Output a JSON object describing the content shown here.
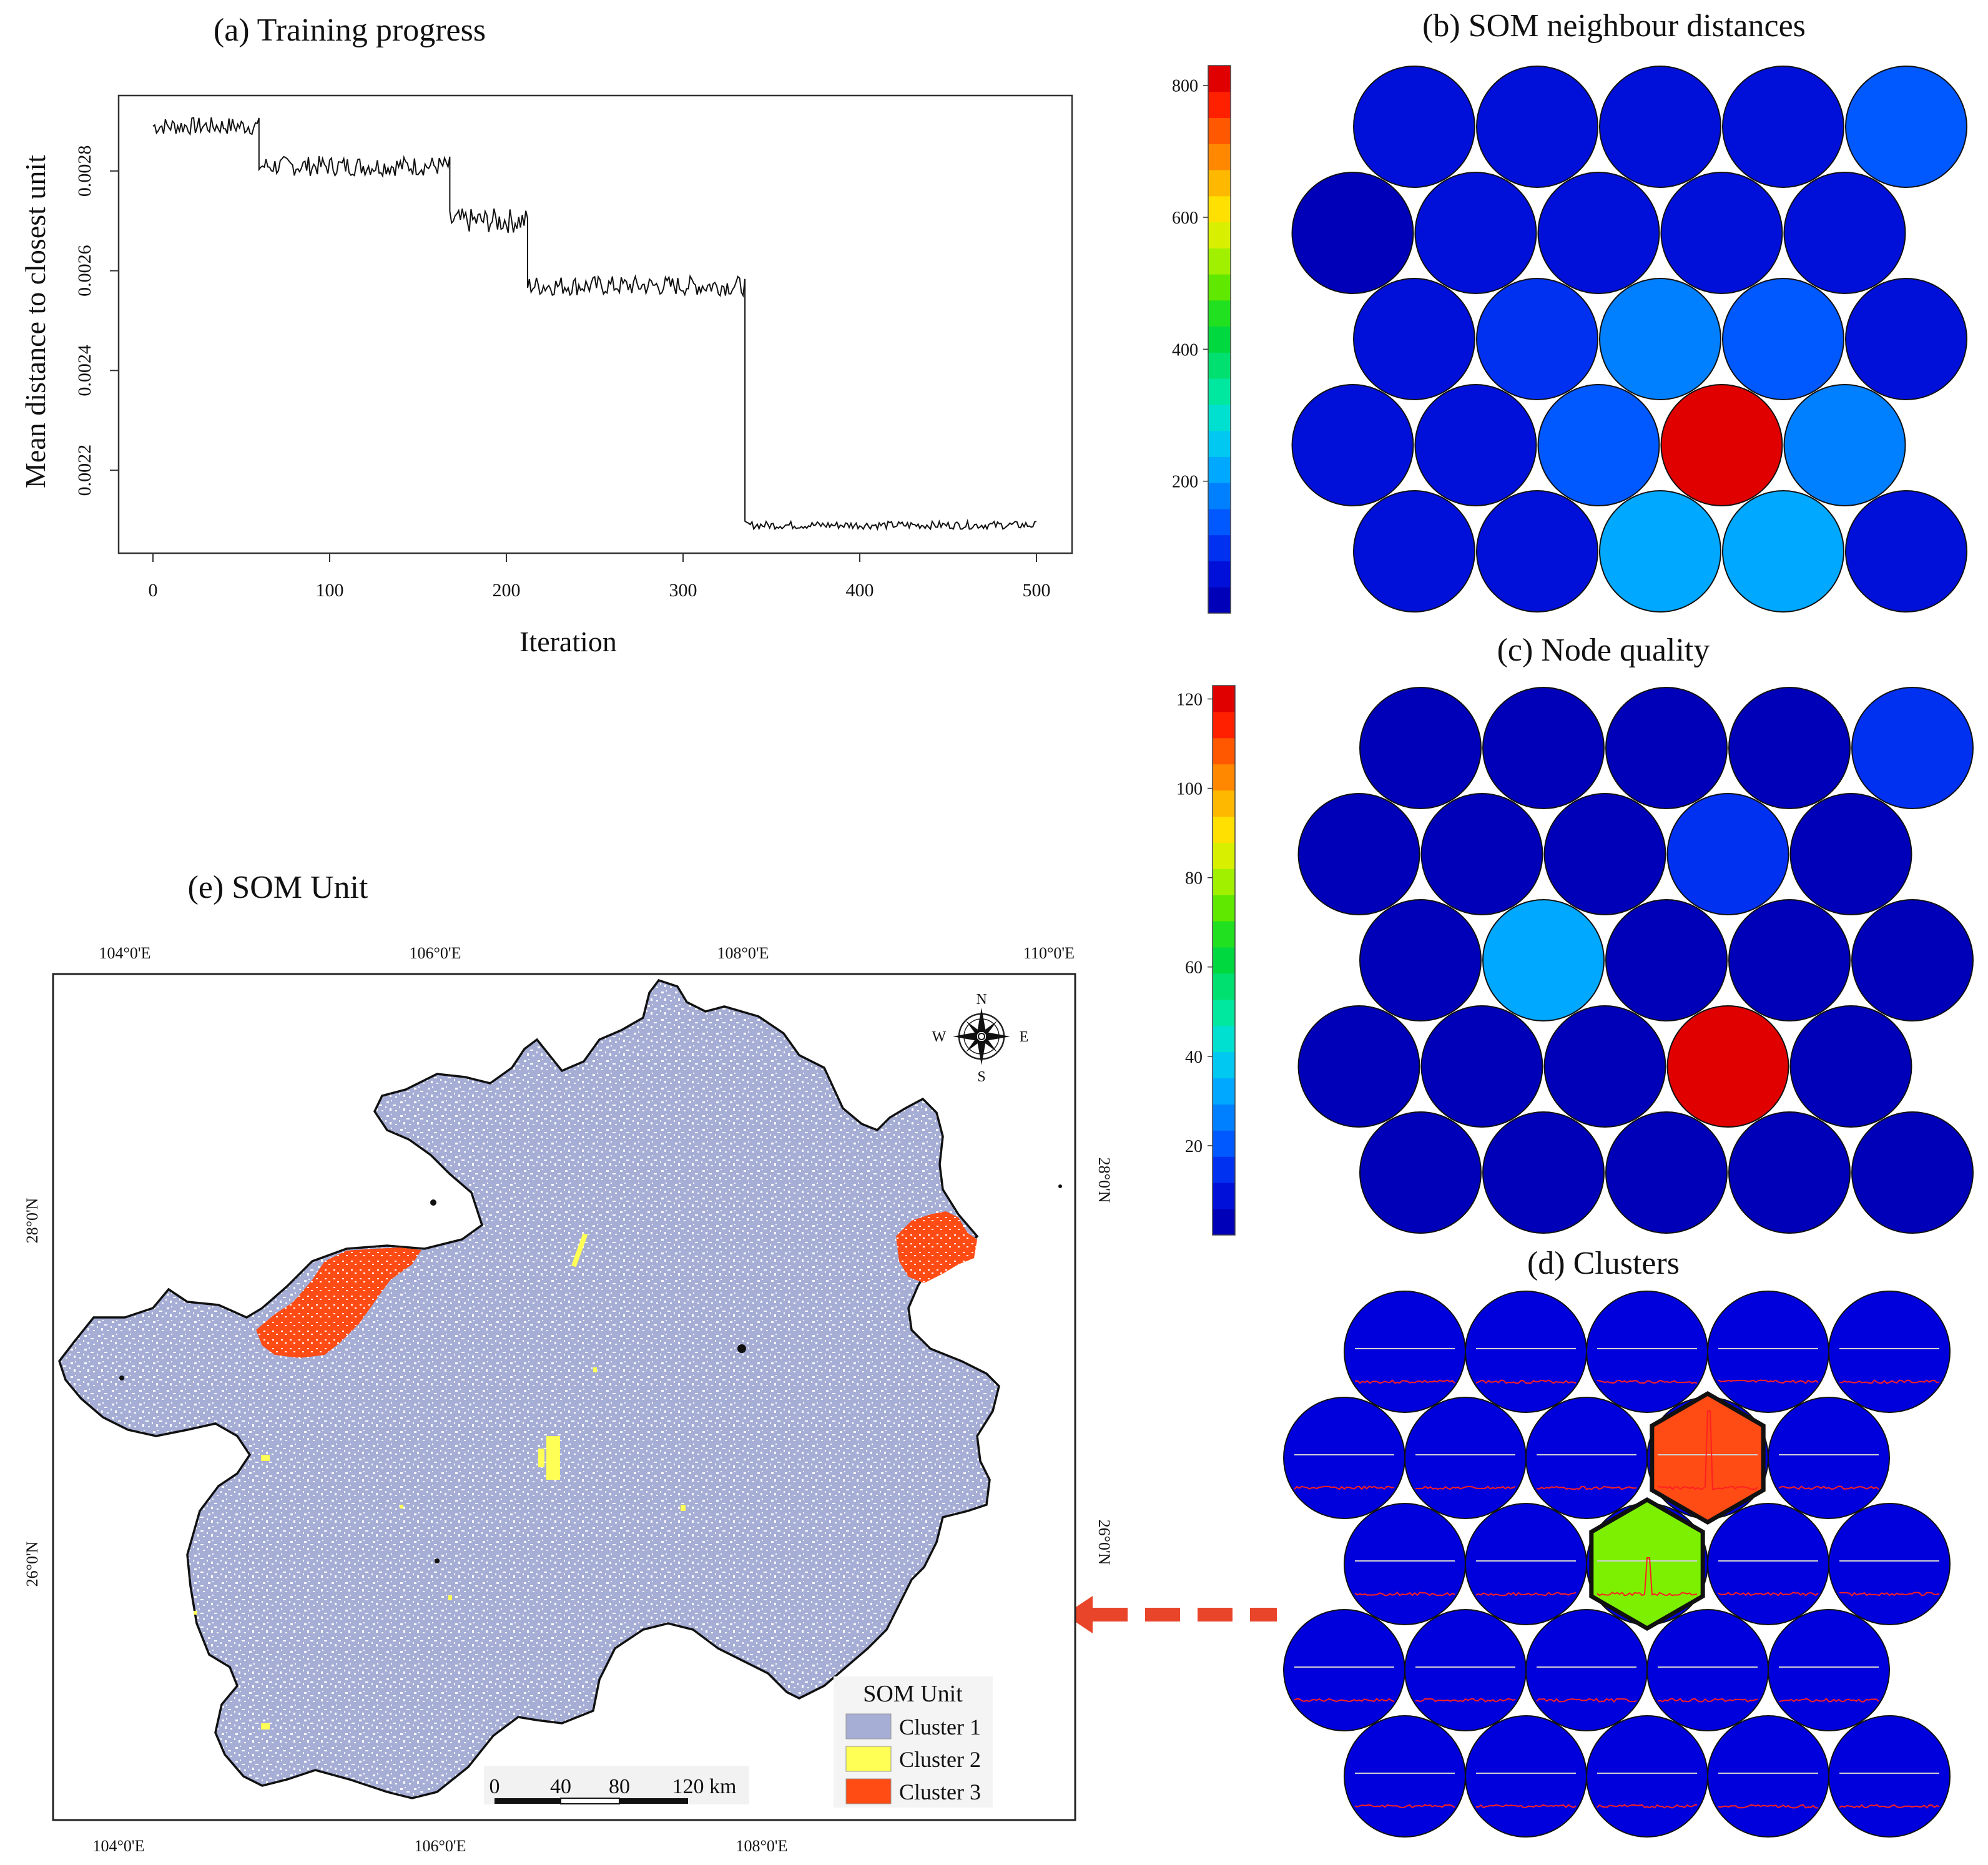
{
  "colors": {
    "cluster1": "#a6aed6",
    "cluster2": "#ffff55",
    "cluster3": "#ff4b14",
    "node_blue": "#0000dd",
    "arrow": "#e8452a"
  },
  "panel_a": {
    "title": "(a) Training progress",
    "chart_data": {
      "type": "line",
      "title": "(a) Training progress",
      "xlabel": "Iteration",
      "ylabel": "Mean distance to closest unit",
      "xlim": [
        0,
        500
      ],
      "ylim": [
        0.00205,
        0.00293
      ],
      "xticks": [
        "0",
        "100",
        "200",
        "300",
        "400",
        "500"
      ],
      "yticks": [
        "0.0022",
        "0.0024",
        "0.0026",
        "0.0028"
      ],
      "segments": [
        {
          "x_start": 0,
          "x_end": 60,
          "level": 0.00289,
          "noise": 1.8e-05
        },
        {
          "x_start": 60,
          "x_end": 168,
          "level": 0.00281,
          "noise": 2e-05
        },
        {
          "x_start": 168,
          "x_end": 212,
          "level": 0.0027,
          "noise": 2.5e-05
        },
        {
          "x_start": 212,
          "x_end": 335,
          "level": 0.00257,
          "noise": 2e-05
        },
        {
          "x_start": 335,
          "x_end": 500,
          "level": 0.00209,
          "noise": 8e-06
        }
      ]
    }
  },
  "panel_b": {
    "title": "(b) SOM neighbour distances",
    "chart_data": {
      "type": "heatmap",
      "title": "(b) SOM neighbour distances",
      "scale_range": [
        0,
        830
      ],
      "scale_ticks": [
        "200",
        "400",
        "600",
        "800"
      ],
      "grid": [
        [
          50,
          50,
          50,
          50,
          120
        ],
        [
          30,
          50,
          50,
          50,
          50
        ],
        [
          50,
          100,
          160,
          150,
          60
        ],
        [
          40,
          50,
          150,
          800,
          180
        ],
        [
          50,
          50,
          220,
          230,
          60
        ]
      ]
    }
  },
  "panel_c": {
    "title": "(c) Node quality",
    "chart_data": {
      "type": "heatmap",
      "title": "(c) Node quality",
      "scale_range": [
        0,
        123
      ],
      "scale_ticks": [
        "20",
        "40",
        "60",
        "80",
        "100",
        "120"
      ],
      "grid": [
        [
          5,
          5,
          5,
          5,
          12
        ],
        [
          5,
          5,
          5,
          12,
          5
        ],
        [
          5,
          30,
          5,
          5,
          5
        ],
        [
          5,
          5,
          5,
          120,
          5
        ],
        [
          5,
          5,
          5,
          5,
          5
        ]
      ]
    }
  },
  "panel_d": {
    "title": "(d) Clusters",
    "chart_data": {
      "type": "heatmap",
      "title": "(d) Clusters",
      "cluster_grid": [
        [
          1,
          1,
          1,
          1,
          1
        ],
        [
          1,
          1,
          1,
          3,
          1
        ],
        [
          1,
          1,
          2,
          1,
          1
        ],
        [
          1,
          1,
          1,
          1,
          1
        ],
        [
          1,
          1,
          1,
          1,
          1
        ]
      ]
    }
  },
  "panel_e": {
    "title": "(e) SOM Unit",
    "top_lon_labels": [
      "104°0'E",
      "106°0'E",
      "108°0'E",
      "110°0'E"
    ],
    "bottom_lon_labels": [
      "104°0'E",
      "106°0'E",
      "108°0'E"
    ],
    "left_lat_labels": [
      "28°0'N",
      "26°0'N"
    ],
    "right_lat_labels": [
      "28°0'N",
      "26°0'N"
    ],
    "compass": {
      "n": "N",
      "s": "S",
      "e": "E",
      "w": "W"
    },
    "scale_labels": [
      "0",
      "40",
      "80",
      "120 km"
    ],
    "legend": {
      "title": "SOM Unit",
      "items": [
        "Cluster 1",
        "Cluster 2",
        "Cluster 3"
      ]
    }
  }
}
